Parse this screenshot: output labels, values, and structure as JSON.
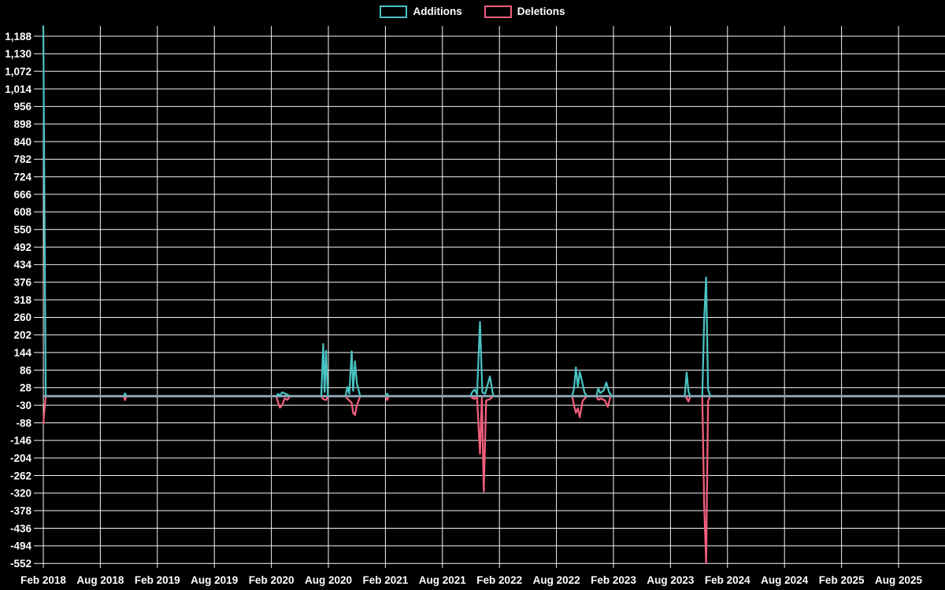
{
  "chart_data": {
    "type": "line",
    "description": "Weekly code additions and deletions over time (code-frequency style chart), black background",
    "legend": [
      {
        "label": "Additions",
        "color": "#4ac2c2"
      },
      {
        "label": "Deletions",
        "color": "#f25f7d"
      }
    ],
    "colors": {
      "background": "#000000",
      "grid": "#f5f5f5",
      "text": "#ffffff",
      "baseline": "#8ca2b0"
    },
    "x_axis": {
      "tick_labels": [
        "Feb 2018",
        "Aug 2018",
        "Feb 2019",
        "Aug 2019",
        "Feb 2020",
        "Aug 2020",
        "Feb 2021",
        "Aug 2021",
        "Feb 2022",
        "Aug 2022",
        "Feb 2023",
        "Aug 2023",
        "Feb 2024",
        "Aug 2024",
        "Feb 2025",
        "Aug 2025"
      ],
      "months_per_gridline": 6
    },
    "y_axis": {
      "min": -552,
      "max": 1188,
      "step": 58,
      "ticks": [
        1188,
        1130,
        1072,
        1014,
        956,
        898,
        840,
        782,
        724,
        666,
        608,
        550,
        492,
        434,
        376,
        318,
        260,
        202,
        144,
        86,
        28,
        -30,
        -88,
        -146,
        -204,
        -262,
        -320,
        -378,
        -436,
        -494,
        -552
      ],
      "labels": [
        "1,188",
        "1,130",
        "1,072",
        "1,014",
        "956",
        "898",
        "840",
        "782",
        "724",
        "666",
        "608",
        "550",
        "492",
        "434",
        "376",
        "318",
        "260",
        "202",
        "144",
        "86",
        "28",
        "-30",
        "-88",
        "-146",
        "-204",
        "-262",
        "-320",
        "-378",
        "-436",
        "-494",
        "-552"
      ]
    },
    "x_unit": "months since Feb 2018",
    "baseline": {
      "from": 0,
      "to": 94.9,
      "value": 0
    },
    "series": [
      {
        "name": "Additions",
        "color": "#4ac2c2",
        "segments": [
          [
            [
              0,
              1221
            ],
            [
              0.25,
              0
            ]
          ],
          [
            [
              8.45,
              0
            ],
            [
              8.6,
              9
            ],
            [
              8.75,
              0
            ]
          ],
          [
            [
              24.5,
              0
            ],
            [
              24.7,
              7
            ],
            [
              24.9,
              3
            ],
            [
              25.15,
              13
            ],
            [
              25.4,
              9
            ],
            [
              25.7,
              5
            ],
            [
              25.95,
              0
            ]
          ],
          [
            [
              29.25,
              0
            ],
            [
              29.45,
              172
            ],
            [
              29.6,
              14
            ],
            [
              29.75,
              150
            ],
            [
              29.95,
              0
            ]
          ],
          [
            [
              31.8,
              0
            ],
            [
              32.0,
              30
            ],
            [
              32.2,
              8
            ],
            [
              32.45,
              148
            ],
            [
              32.6,
              18
            ],
            [
              32.8,
              115
            ],
            [
              33.0,
              42
            ],
            [
              33.35,
              0
            ]
          ],
          [
            [
              36.05,
              0
            ],
            [
              36.2,
              8
            ],
            [
              36.35,
              0
            ]
          ],
          [
            [
              44.95,
              0
            ],
            [
              45.15,
              14
            ],
            [
              45.4,
              22
            ],
            [
              45.65,
              6
            ],
            [
              45.95,
              245
            ],
            [
              46.2,
              12
            ],
            [
              46.5,
              8
            ],
            [
              47.0,
              65
            ],
            [
              47.35,
              0
            ]
          ],
          [
            [
              55.65,
              0
            ],
            [
              55.85,
              25
            ],
            [
              56.05,
              95
            ],
            [
              56.25,
              30
            ],
            [
              56.45,
              80
            ],
            [
              56.65,
              55
            ],
            [
              56.95,
              12
            ],
            [
              57.2,
              0
            ]
          ],
          [
            [
              58.2,
              0
            ],
            [
              58.4,
              26
            ],
            [
              58.6,
              10
            ],
            [
              58.95,
              18
            ],
            [
              59.25,
              45
            ],
            [
              59.55,
              12
            ],
            [
              59.85,
              0
            ]
          ],
          [
            [
              67.5,
              0
            ],
            [
              67.7,
              78
            ],
            [
              67.9,
              14
            ],
            [
              68.1,
              0
            ]
          ],
          [
            [
              69.35,
              0
            ],
            [
              69.55,
              255
            ],
            [
              69.75,
              392
            ],
            [
              69.95,
              22
            ],
            [
              70.2,
              0
            ]
          ]
        ]
      },
      {
        "name": "Deletions",
        "color": "#f25f7d",
        "segments": [
          [
            [
              0,
              -90
            ],
            [
              0.25,
              0
            ]
          ],
          [
            [
              8.45,
              0
            ],
            [
              8.6,
              -13
            ],
            [
              8.75,
              0
            ]
          ],
          [
            [
              24.5,
              0
            ],
            [
              24.7,
              -20
            ],
            [
              24.9,
              -38
            ],
            [
              25.15,
              -28
            ],
            [
              25.4,
              -8
            ],
            [
              25.7,
              -12
            ],
            [
              25.95,
              0
            ]
          ],
          [
            [
              29.25,
              0
            ],
            [
              29.45,
              -10
            ],
            [
              29.75,
              -13
            ],
            [
              29.95,
              0
            ]
          ],
          [
            [
              31.8,
              0
            ],
            [
              32.0,
              -8
            ],
            [
              32.45,
              -22
            ],
            [
              32.6,
              -55
            ],
            [
              32.8,
              -62
            ],
            [
              33.0,
              -30
            ],
            [
              33.35,
              0
            ]
          ],
          [
            [
              36.05,
              0
            ],
            [
              36.2,
              -13
            ],
            [
              36.35,
              0
            ]
          ],
          [
            [
              44.95,
              0
            ],
            [
              45.15,
              -6
            ],
            [
              45.4,
              -9
            ],
            [
              45.65,
              -4
            ],
            [
              45.95,
              -190
            ],
            [
              46.15,
              -6
            ],
            [
              46.35,
              -315
            ],
            [
              46.6,
              -14
            ],
            [
              47.0,
              -10
            ],
            [
              47.35,
              0
            ]
          ],
          [
            [
              55.65,
              0
            ],
            [
              55.85,
              -30
            ],
            [
              56.05,
              -55
            ],
            [
              56.25,
              -40
            ],
            [
              56.45,
              -70
            ],
            [
              56.75,
              -16
            ],
            [
              57.2,
              0
            ]
          ],
          [
            [
              58.2,
              0
            ],
            [
              58.4,
              -12
            ],
            [
              58.7,
              -8
            ],
            [
              59.1,
              -14
            ],
            [
              59.4,
              -35
            ],
            [
              59.7,
              0
            ]
          ],
          [
            [
              67.5,
              0
            ],
            [
              67.7,
              -6
            ],
            [
              67.9,
              -18
            ],
            [
              68.1,
              0
            ]
          ],
          [
            [
              69.35,
              0
            ],
            [
              69.55,
              -360
            ],
            [
              69.75,
              -552
            ],
            [
              69.95,
              -16
            ],
            [
              70.2,
              0
            ]
          ]
        ]
      }
    ]
  }
}
